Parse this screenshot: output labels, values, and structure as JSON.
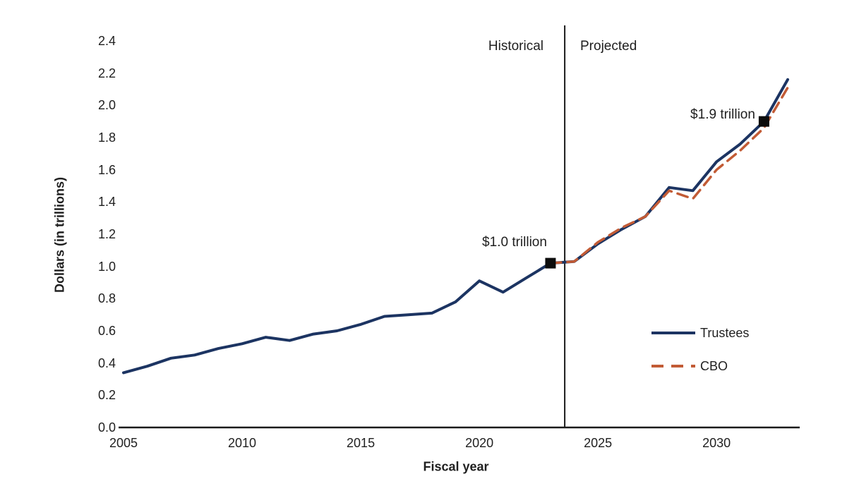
{
  "colors": {
    "trustees": "#1c3462",
    "cbo": "#c25b35",
    "axis": "#1a1a1a",
    "text": "#1f1f1f",
    "marker": "#0d0d0d",
    "background": "#ffffff"
  },
  "chart_data": {
    "type": "line",
    "title": "",
    "xlabel": "Fiscal year",
    "ylabel": "Dollars (in trillions)",
    "xlim": [
      2005,
      2033
    ],
    "ylim": [
      0.0,
      2.4
    ],
    "grid": false,
    "legend_position": "lower right",
    "xticks": [
      2005,
      2010,
      2015,
      2020,
      2025,
      2030
    ],
    "yticks": [
      0.0,
      0.2,
      0.4,
      0.6,
      0.8,
      1.0,
      1.2,
      1.4,
      1.6,
      1.8,
      2.0,
      2.2,
      2.4
    ],
    "divider": {
      "x": 2023.6,
      "left_label": "Historical",
      "right_label": "Projected"
    },
    "years": [
      2005,
      2006,
      2007,
      2008,
      2009,
      2010,
      2011,
      2012,
      2013,
      2014,
      2015,
      2016,
      2017,
      2018,
      2019,
      2020,
      2021,
      2022,
      2023,
      2024,
      2025,
      2026,
      2027,
      2028,
      2029,
      2030,
      2031,
      2032,
      2033
    ],
    "series": [
      {
        "name": "Trustees",
        "style": "solid",
        "color_key": "trustees",
        "values": [
          0.34,
          0.38,
          0.43,
          0.45,
          0.49,
          0.52,
          0.56,
          0.54,
          0.58,
          0.6,
          0.64,
          0.69,
          0.7,
          0.71,
          0.78,
          0.91,
          0.84,
          0.93,
          1.02,
          1.03,
          1.14,
          1.23,
          1.31,
          1.49,
          1.47,
          1.65,
          1.76,
          1.9,
          2.16
        ]
      },
      {
        "name": "CBO",
        "style": "dashed",
        "color_key": "cbo",
        "values": [
          null,
          null,
          null,
          null,
          null,
          null,
          null,
          null,
          null,
          null,
          null,
          null,
          null,
          null,
          null,
          null,
          null,
          null,
          1.02,
          1.03,
          1.15,
          1.24,
          1.31,
          1.47,
          1.42,
          1.6,
          1.72,
          1.86,
          2.11
        ]
      }
    ],
    "annotations": [
      {
        "label": "$1.0 trillion",
        "year": 2023,
        "value": 1.02,
        "marker": "black-square"
      },
      {
        "label": "$1.9 trillion",
        "year": 2032,
        "value": 1.9,
        "marker": "black-square"
      }
    ]
  }
}
